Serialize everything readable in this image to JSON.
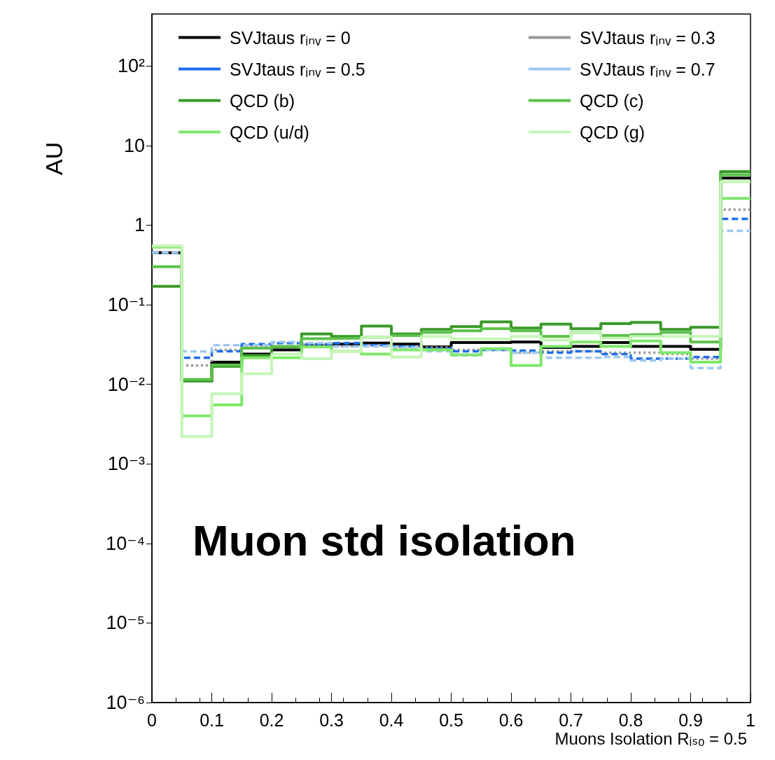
{
  "chart_data": {
    "type": "histogram",
    "ylabel": "AU",
    "xlabel": "Muons Isolation Rᵢₛₒ = 0.5",
    "annotations": [
      "Muon std isolation"
    ],
    "bins": [
      0,
      0.05,
      0.1,
      0.15,
      0.2,
      0.25,
      0.3,
      0.35,
      0.4,
      0.45,
      0.5,
      0.55,
      0.6,
      0.65,
      0.7,
      0.75,
      0.8,
      0.85,
      0.9,
      0.95,
      1
    ],
    "series": [
      {
        "name": "SVJtaus rᵢₙᵥ = 0",
        "color": "#000000",
        "line_style": "solid",
        "values": [
          0.45,
          0.011,
          0.019,
          0.024,
          0.027,
          0.031,
          0.032,
          0.033,
          0.032,
          0.0295,
          0.0335,
          0.0335,
          0.034,
          0.029,
          0.03,
          0.0335,
          0.03,
          0.03,
          0.0275,
          3.9
        ]
      },
      {
        "name": "SVJtaus rᵢₙᵥ = 0.3",
        "color": "#999999",
        "line_style": "dotted",
        "values": [
          0.45,
          0.0172,
          0.027,
          0.03,
          0.03,
          0.031,
          0.03,
          0.031,
          0.03,
          0.029,
          0.027,
          0.027,
          0.025,
          0.026,
          0.026,
          0.025,
          0.025,
          0.024,
          0.021,
          1.57
        ]
      },
      {
        "name": "SVJtaus rᵢₙᵥ = 0.5",
        "color": "#1f6fe8",
        "line_style": "dashed",
        "values": [
          0.45,
          0.0215,
          0.026,
          0.032,
          0.033,
          0.032,
          0.033,
          0.031,
          0.03,
          0.028,
          0.026,
          0.027,
          0.0265,
          0.025,
          0.026,
          0.024,
          0.021,
          0.021,
          0.022,
          1.2
        ]
      },
      {
        "name": "SVJtaus rᵢₙᵥ = 0.7",
        "color": "#9ec8f0",
        "line_style": "dashed",
        "values": [
          0.45,
          0.0258,
          0.031,
          0.031,
          0.034,
          0.033,
          0.03,
          0.03,
          0.029,
          0.026,
          0.023,
          0.027,
          0.025,
          0.0215,
          0.0215,
          0.022,
          0.02,
          0.021,
          0.016,
          0.85
        ]
      },
      {
        "name": "QCD (b)",
        "color": "#3a9a2a",
        "line_style": "solid",
        "values": [
          0.17,
          0.011,
          0.0168,
          0.023,
          0.0295,
          0.043,
          0.04,
          0.054,
          0.043,
          0.049,
          0.053,
          0.061,
          0.051,
          0.057,
          0.05,
          0.058,
          0.06,
          0.049,
          0.052,
          4.7
        ]
      },
      {
        "name": "QCD (c)",
        "color": "#5cc04a",
        "line_style": "solid",
        "values": [
          0.3,
          0.0115,
          0.0175,
          0.0285,
          0.03,
          0.0375,
          0.038,
          0.039,
          0.041,
          0.045,
          0.047,
          0.05,
          0.047,
          0.04,
          0.045,
          0.041,
          0.042,
          0.045,
          0.034,
          4.3
        ]
      },
      {
        "name": "QCD (u/d)",
        "color": "#7ee86a",
        "line_style": "solid",
        "values": [
          0.53,
          0.004,
          0.0055,
          0.0215,
          0.0215,
          0.0295,
          0.026,
          0.024,
          0.027,
          0.027,
          0.0235,
          0.028,
          0.0172,
          0.03,
          0.034,
          0.03,
          0.035,
          0.025,
          0.019,
          2.17
        ]
      },
      {
        "name": "QCD (g)",
        "color": "#c6f5b8",
        "line_style": "solid",
        "values": [
          0.55,
          0.0022,
          0.0076,
          0.0136,
          0.024,
          0.021,
          0.026,
          0.039,
          0.022,
          0.04,
          0.037,
          0.037,
          0.04,
          0.036,
          0.045,
          0.038,
          0.04,
          0.04,
          0.04,
          3.5
        ]
      }
    ],
    "log": true,
    "xlim": [
      0,
      1
    ],
    "xticks": [
      0,
      0.1,
      0.2,
      0.3,
      0.4,
      0.5,
      0.6,
      0.7,
      0.8,
      0.9,
      1
    ],
    "ylim": [
      1e-06,
      450
    ],
    "yticks": [
      {
        "value": 1e-06,
        "label": "10⁻⁶"
      },
      {
        "value": 1e-05,
        "label": "10⁻⁵"
      },
      {
        "value": 0.0001,
        "label": "10⁻⁴"
      },
      {
        "value": 0.001,
        "label": "10⁻³"
      },
      {
        "value": 0.01,
        "label": "10⁻²"
      },
      {
        "value": 0.1,
        "label": "10⁻¹"
      },
      1,
      10,
      {
        "value": 100,
        "label": "10²"
      }
    ],
    "grid": false,
    "legend": "top",
    "marker": "none"
  }
}
